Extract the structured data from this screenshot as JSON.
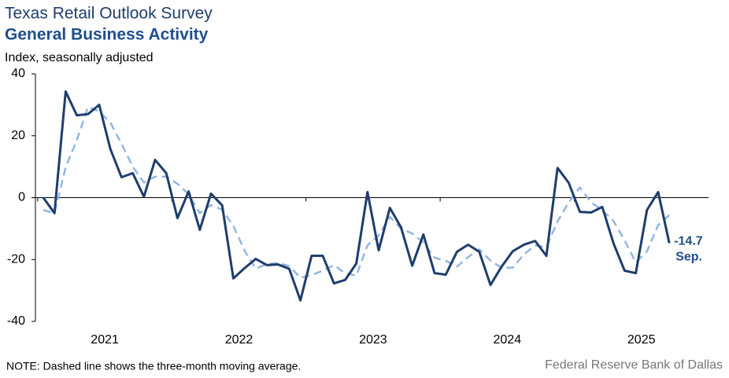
{
  "chart_data": {
    "type": "line",
    "title": "Texas Retail Outlook Survey",
    "subtitle": "General Business Activity",
    "ylabel": "Index, seasonally adjusted",
    "note": "NOTE: Dashed line shows the three-month moving average.",
    "source": "Federal Reserve Bank of Dallas",
    "categories": [
      null,
      null,
      null,
      null,
      null,
      "2021",
      null,
      null,
      null,
      null,
      null,
      null,
      null,
      null,
      null,
      null,
      null,
      "2022",
      null,
      null,
      null,
      null,
      null,
      null,
      null,
      null,
      null,
      null,
      null,
      "2023",
      null,
      null,
      null,
      null,
      null,
      null,
      null,
      null,
      null,
      null,
      null,
      "2024",
      null,
      null,
      null,
      null,
      null,
      null,
      null,
      null,
      null,
      null,
      null,
      "2025",
      null,
      null,
      null
    ],
    "series": [
      {
        "name": "General Business Activity",
        "color": "#1f3d6d",
        "dashed": false,
        "values": [
          0,
          -5,
          34.3,
          26.6,
          27,
          30,
          15.7,
          6.6,
          7.9,
          0.3,
          12.2,
          7.9,
          -6.6,
          2,
          -10.4,
          1.3,
          -2.5,
          -26.1,
          -22.8,
          -19.8,
          -21.8,
          -21.6,
          -23,
          -33.2,
          -18.8,
          -18.8,
          -27.7,
          -26.6,
          -21.3,
          1.8,
          -17,
          -3.3,
          -9.6,
          -22,
          -11.9,
          -24.4,
          -24.9,
          -17.5,
          -15.2,
          -17.5,
          -28.2,
          -22.3,
          -17.3,
          -15.2,
          -14,
          -18.8,
          9.6,
          4.8,
          -4.6,
          -4.8,
          -3,
          -14.7,
          -23.6,
          -24.4,
          -4,
          1.8,
          -14.7
        ]
      },
      {
        "name": "Three-month moving average",
        "color": "#93b6e0",
        "dashed": true,
        "values": [
          -4,
          -5,
          9.8,
          18.6,
          29.3,
          27.9,
          24.2,
          17.4,
          10,
          4.9,
          6.8,
          6.8,
          4.5,
          1.1,
          -5,
          -2.4,
          -3.9,
          -9.1,
          -17.1,
          -22.9,
          -21.5,
          -21.1,
          -22.1,
          -25.9,
          -25,
          -23.6,
          -21.8,
          -24.4,
          -25.2,
          -15.4,
          -12.2,
          -6.2,
          -10,
          -11.6,
          -14.5,
          -19.4,
          -20.4,
          -22.3,
          -19.2,
          -16.7,
          -20.3,
          -22.7,
          -22.6,
          -18.3,
          -15.5,
          -16,
          -7.7,
          -1.5,
          3.3,
          -1.5,
          -4.1,
          -7.5,
          -13.8,
          -20.9,
          -17.3,
          -8.9,
          -5.6
        ]
      }
    ],
    "end_annotation": "Sep.",
    "ylim": [
      -40,
      40
    ],
    "yticks": [
      -40,
      -20,
      0,
      20,
      40
    ]
  }
}
